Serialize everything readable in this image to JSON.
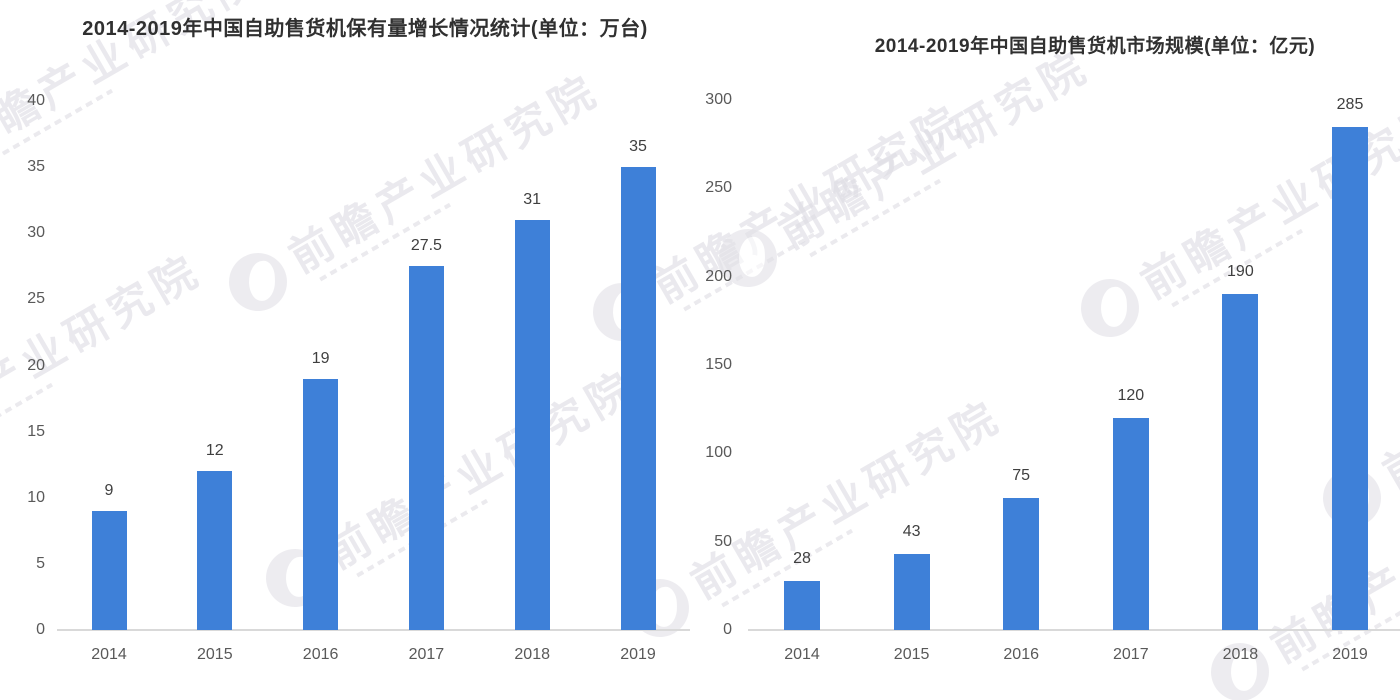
{
  "page": {
    "background": "#ffffff"
  },
  "watermark": {
    "text": "前瞻产业研究院",
    "color": "#dddce3"
  },
  "chart_data": [
    {
      "type": "bar",
      "title": "2014-2019年中国自助售货机保有量增长情况统计(单位：万台)",
      "categories": [
        "2014",
        "2015",
        "2016",
        "2017",
        "2018",
        "2019"
      ],
      "values": [
        9,
        12,
        19,
        27.5,
        31,
        35
      ],
      "xlabel": "",
      "ylabel": "",
      "ylim": [
        0,
        40
      ],
      "ytick_step": 5,
      "yticks": [
        0,
        5,
        10,
        15,
        20,
        25,
        30,
        35,
        40
      ],
      "bar_color": "#3e80d8",
      "grid": false,
      "legend": "none",
      "data_labels": [
        "9",
        "12",
        "19",
        "27.5",
        "31",
        "35"
      ]
    },
    {
      "type": "bar",
      "title": "2014-2019年中国自助售货机市场规模(单位：亿元)",
      "categories": [
        "2014",
        "2015",
        "2016",
        "2017",
        "2018",
        "2019"
      ],
      "values": [
        28,
        43,
        75,
        120,
        190,
        285
      ],
      "xlabel": "",
      "ylabel": "",
      "ylim": [
        0,
        300
      ],
      "ytick_step": 50,
      "yticks": [
        0,
        50,
        100,
        150,
        200,
        250,
        300
      ],
      "bar_color": "#3e80d8",
      "grid": false,
      "legend": "none",
      "data_labels": [
        "28",
        "43",
        "75",
        "120",
        "190",
        "285"
      ]
    }
  ]
}
